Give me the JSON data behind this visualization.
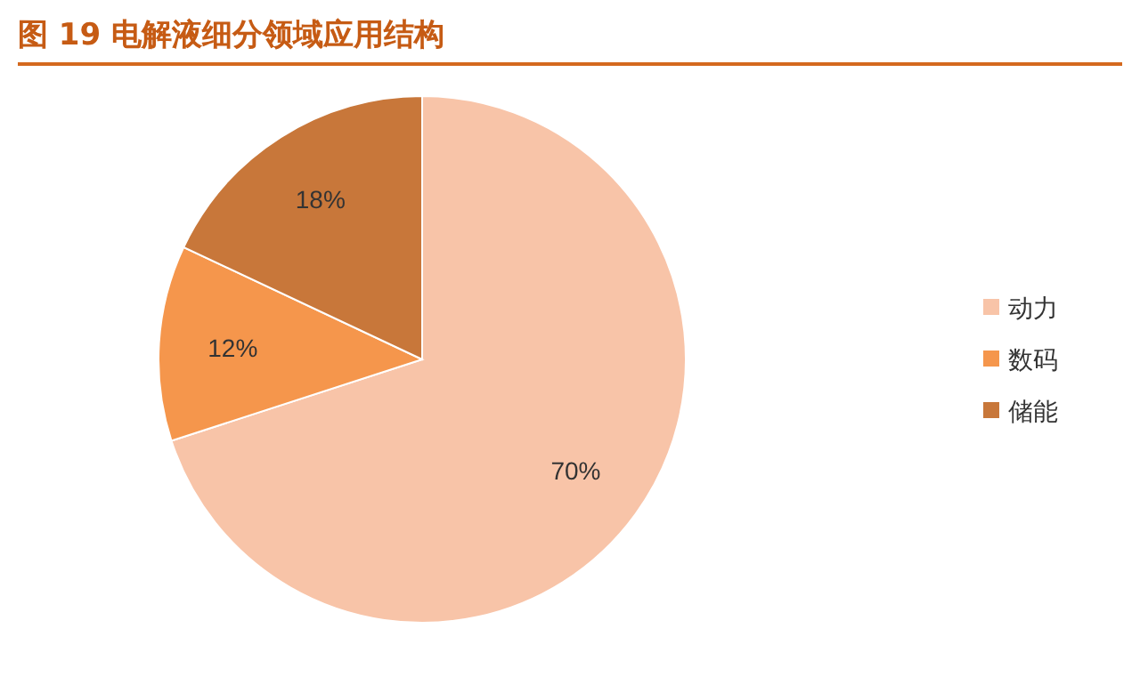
{
  "chart_data": {
    "type": "pie",
    "title": "图 19 电解液细分领域应用结构",
    "categories": [
      "动力",
      "数码",
      "储能"
    ],
    "values": [
      70,
      12,
      18
    ],
    "colors": [
      "#f8c4a8",
      "#f5964c",
      "#c8773a"
    ],
    "value_labels": [
      "70%",
      "12%",
      "18%"
    ],
    "legend": "right"
  }
}
